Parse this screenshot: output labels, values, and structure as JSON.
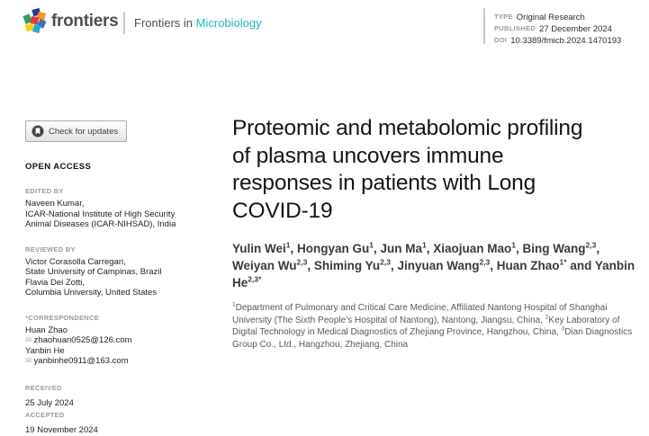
{
  "colors": {
    "journal_teal": "#1db4c6",
    "label_gray": "#9a9a9a",
    "logo_gray": "#4f4f4f"
  },
  "header": {
    "logo_text": "frontiers",
    "journal_prefix": "Frontiers in",
    "journal_name": "Microbiology",
    "meta": [
      {
        "label": "TYPE",
        "value": "Original Research"
      },
      {
        "label": "PUBLISHED",
        "value": "27 December 2024"
      },
      {
        "label": "DOI",
        "value": "10.3389/fmicb.2024.1470193"
      }
    ]
  },
  "sidebar": {
    "check_updates_label": "Check for updates",
    "check_updates_icon": "crossmark-icon",
    "open_access": "OPEN ACCESS",
    "edited_by": {
      "label": "EDITED BY",
      "lines": [
        "Naveen Kumar,",
        "ICAR-National Institute of High Security",
        "Animal Diseases (ICAR-NIHSAD), India"
      ]
    },
    "reviewed_by": {
      "label": "REVIEWED BY",
      "lines": [
        "Victor Corasolla Carregari,",
        "State University of Campinas, Brazil",
        "Flavia Dei Zotti,",
        "Columbia University, United States"
      ]
    },
    "correspondence": {
      "label": "*CORRESPONDENCE",
      "email_icon": "envelope-icon",
      "email_glyph": "✉",
      "entries": [
        {
          "name": "Huan Zhao",
          "email": "zhaohuan0525@126.com"
        },
        {
          "name": "Yanbin He",
          "email": "yanbinhe0911@163.com"
        }
      ]
    },
    "dates": [
      {
        "label": "RECEIVED",
        "value": "25 July 2024"
      },
      {
        "label": "ACCEPTED",
        "value": "19 November 2024"
      }
    ]
  },
  "article": {
    "title": "Proteomic and metabolomic profiling of plasma uncovers immune responses in patients with Long COVID-19",
    "authors": [
      {
        "text": "Yulin Wei",
        "sup": "1"
      },
      {
        "text": ", Hongyan Gu",
        "sup": "1"
      },
      {
        "text": ", Jun Ma",
        "sup": "1"
      },
      {
        "text": ", Xiaojuan Mao",
        "sup": "1"
      },
      {
        "text": ", Bing Wang",
        "sup": "2,3"
      },
      {
        "text": ", Weiyan Wu",
        "sup": "2,3"
      },
      {
        "text": ", Shiming Yu",
        "sup": "2,3"
      },
      {
        "text": ", Jinyuan Wang",
        "sup": "2,3"
      },
      {
        "text": ", Huan Zhao",
        "sup": "1*"
      },
      {
        "text": " and Yanbin He",
        "sup": "2,3*"
      }
    ],
    "affiliations": [
      {
        "sup": "1",
        "text": "Department of Pulmonary and Critical Care Medicine, Affiliated Nantong Hospital of Shanghai University (The Sixth People’s Hospital of Nantong), Nantong, Jiangsu, China, "
      },
      {
        "sup": "2",
        "text": "Key Laboratory of Digital Technology in Medical Diagnostics of Zhejiang Province, Hangzhou, China, "
      },
      {
        "sup": "3",
        "text": "Dian Diagnostics Group Co., Ltd., Hangzhou, Zhejiang, China"
      }
    ]
  }
}
